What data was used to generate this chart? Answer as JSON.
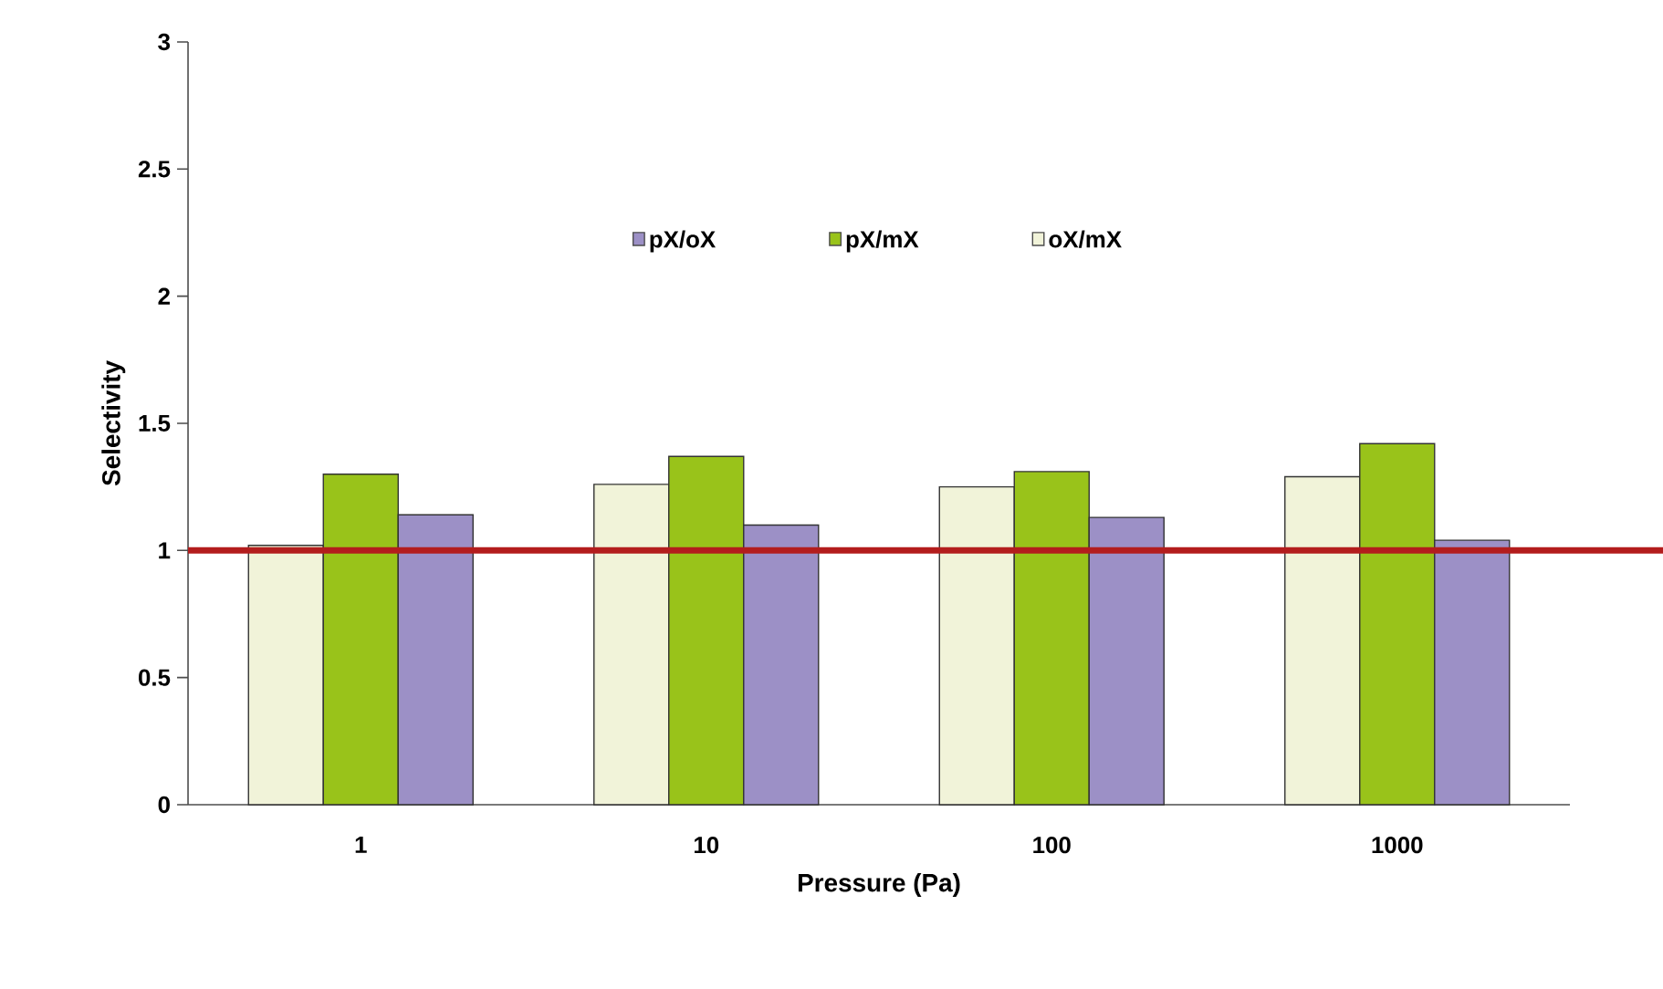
{
  "chart_data": {
    "type": "bar",
    "xlabel": "Pressure (Pa)",
    "ylabel": "Selectivity",
    "categories": [
      "1",
      "10",
      "100",
      "1000"
    ],
    "series": [
      {
        "name": "oX/mX",
        "color": "#f1f3d9",
        "values": [
          1.02,
          1.26,
          1.25,
          1.29
        ]
      },
      {
        "name": "pX/mX",
        "color": "#99c31a",
        "values": [
          1.3,
          1.37,
          1.31,
          1.42
        ]
      },
      {
        "name": "pX/oX",
        "color": "#9c90c6",
        "values": [
          1.14,
          1.1,
          1.13,
          1.04
        ]
      }
    ],
    "ylim": [
      0,
      3
    ],
    "yticks": [
      0,
      0.5,
      1,
      1.5,
      2,
      2.5,
      3
    ],
    "ref_lines": [
      {
        "axis": "y",
        "value": 1,
        "color": "#b31d1d"
      }
    ],
    "legend": "top",
    "grid": false
  }
}
